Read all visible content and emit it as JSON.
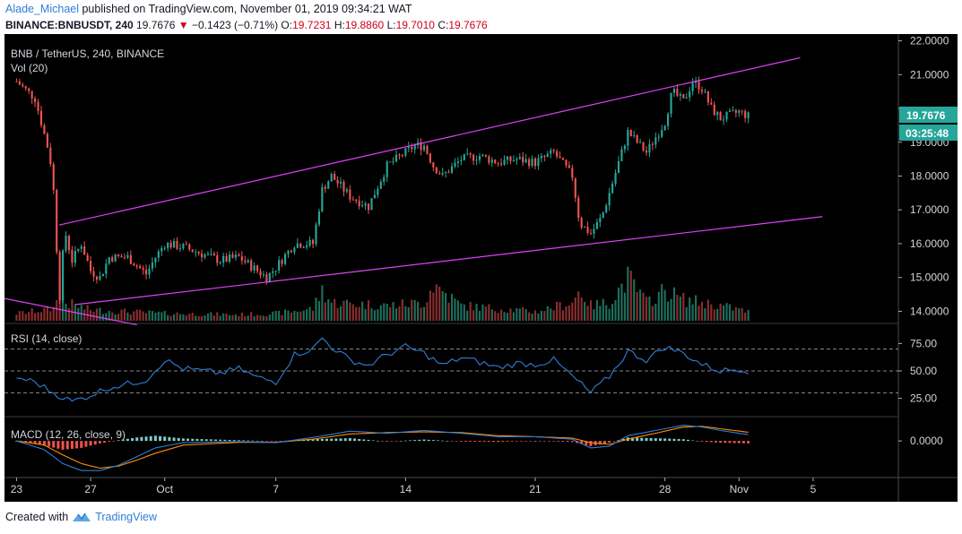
{
  "header": {
    "author": "Alade_Michael",
    "published_text": "published on TradingView.com, November 01, 2019 09:34:21 WAT",
    "symbol_full": "BINANCE:BNBUSDT, 240",
    "last": "19.7676",
    "change": "−0.1423 (−0.71%)",
    "open_label": "O:",
    "open": "19.7231",
    "high_label": "H:",
    "high": "19.8860",
    "low_label": "L:",
    "low": "19.7010",
    "close_label": "C:",
    "close": "19.7676"
  },
  "main_pane": {
    "title": "BNB / TetherUS, 240, BINANCE",
    "vol_label": "Vol (20)",
    "price_badge": "19.7676",
    "countdown_badge": "03:25:48"
  },
  "rsi_pane": {
    "title": "RSI (14, close)"
  },
  "macd_pane": {
    "title": "MACD (12, 26, close, 9)"
  },
  "footer": {
    "created_with": "Created with",
    "brand": "TradingView"
  },
  "colors": {
    "bull": "#26a69a",
    "bear": "#ef5350",
    "bull_vol": "#1e6f5c",
    "bear_vol": "#8b2e2e",
    "channel": "#e040fb",
    "rsi": "#2e7fd6",
    "macd": "#2e7fd6",
    "signal": "#ff8c00"
  },
  "chart_data": {
    "type": "candlestick",
    "price_axis": [
      "22.0000",
      "21.0000",
      "20.0000",
      "19.0000",
      "18.0000",
      "17.0000",
      "16.0000",
      "15.0000",
      "14.0000"
    ],
    "price_range": [
      13.72,
      22.2
    ],
    "rsi_axis": [
      "75.00",
      "50.00",
      "25.00"
    ],
    "rsi_levels": [
      70,
      50,
      30
    ],
    "macd_axis": [
      "0.0000"
    ],
    "date_axis": [
      {
        "label": "23",
        "day": 0
      },
      {
        "label": "27",
        "day": 4
      },
      {
        "label": "Oct",
        "day": 8
      },
      {
        "label": "7",
        "day": 14
      },
      {
        "label": "14",
        "day": 21
      },
      {
        "label": "21",
        "day": 28
      },
      {
        "label": "28",
        "day": 35
      },
      {
        "label": "Nov",
        "day": 39
      },
      {
        "label": "5",
        "day": 43
      }
    ],
    "day_span": [
      -0.65,
      47.6
    ],
    "price_keypoints": [
      [
        0,
        20.8
      ],
      [
        1,
        20.3
      ],
      [
        1.8,
        18.6
      ],
      [
        2.05,
        17.3
      ],
      [
        2.3,
        14.2
      ],
      [
        2.6,
        16.4
      ],
      [
        3,
        15.5
      ],
      [
        3.5,
        16.0
      ],
      [
        4,
        15.2
      ],
      [
        4.5,
        15.0
      ],
      [
        5,
        15.6
      ],
      [
        6,
        15.6
      ],
      [
        7,
        15.1
      ],
      [
        7.5,
        15.6
      ],
      [
        8,
        16.0
      ],
      [
        9,
        15.9
      ],
      [
        10,
        15.7
      ],
      [
        11,
        15.5
      ],
      [
        12,
        15.6
      ],
      [
        13,
        15.2
      ],
      [
        13.5,
        15.0
      ],
      [
        14,
        15.3
      ],
      [
        15,
        16.0
      ],
      [
        16,
        16.0
      ],
      [
        16.5,
        17.6
      ],
      [
        17,
        18.0
      ],
      [
        18,
        17.4
      ],
      [
        19,
        17.1
      ],
      [
        20,
        18.3
      ],
      [
        21,
        18.7
      ],
      [
        21.5,
        18.9
      ],
      [
        22,
        18.9
      ],
      [
        22.5,
        18.3
      ],
      [
        23,
        18.0
      ],
      [
        24,
        18.5
      ],
      [
        25,
        18.6
      ],
      [
        26,
        18.4
      ],
      [
        27,
        18.5
      ],
      [
        28,
        18.4
      ],
      [
        29,
        18.7
      ],
      [
        30,
        18.0
      ],
      [
        30.4,
        16.6
      ],
      [
        31,
        16.3
      ],
      [
        31.6,
        16.8
      ],
      [
        32,
        17.5
      ],
      [
        32.5,
        18.4
      ],
      [
        33,
        19.3
      ],
      [
        34,
        18.7
      ],
      [
        35,
        19.6
      ],
      [
        35.4,
        20.5
      ],
      [
        36,
        20.2
      ],
      [
        36.5,
        20.8
      ],
      [
        37,
        20.6
      ],
      [
        37.5,
        20.0
      ],
      [
        38,
        19.7
      ],
      [
        39,
        19.9
      ],
      [
        39.5,
        19.77
      ]
    ],
    "volume_keypoints": [
      [
        0,
        0.12
      ],
      [
        2,
        0.2
      ],
      [
        2.3,
        0.7
      ],
      [
        2.6,
        0.3
      ],
      [
        4,
        0.18
      ],
      [
        8,
        0.12
      ],
      [
        12,
        0.1
      ],
      [
        14,
        0.12
      ],
      [
        16,
        0.2
      ],
      [
        16.5,
        0.5
      ],
      [
        17,
        0.3
      ],
      [
        20,
        0.25
      ],
      [
        22,
        0.3
      ],
      [
        22.5,
        0.6
      ],
      [
        24,
        0.25
      ],
      [
        28,
        0.15
      ],
      [
        30,
        0.3
      ],
      [
        30.4,
        0.5
      ],
      [
        31,
        0.25
      ],
      [
        32,
        0.3
      ],
      [
        33,
        0.7
      ],
      [
        34,
        0.3
      ],
      [
        35,
        0.5
      ],
      [
        36,
        0.35
      ],
      [
        38,
        0.25
      ],
      [
        39.5,
        0.15
      ]
    ],
    "trendlines": [
      {
        "name": "upper",
        "p1": [
          2.3,
          16.55
        ],
        "p2": [
          42.3,
          21.5
        ]
      },
      {
        "name": "lower",
        "p1": [
          3.2,
          14.2
        ],
        "p2": [
          43.5,
          16.8
        ]
      },
      {
        "name": "old-down",
        "p1": [
          -0.65,
          14.38
        ],
        "p2": [
          6.5,
          13.6
        ]
      }
    ],
    "rsi_range": [
      10,
      90
    ],
    "rsi_keypoints": [
      [
        0,
        44
      ],
      [
        1,
        40
      ],
      [
        2,
        30
      ],
      [
        3,
        22
      ],
      [
        4,
        28
      ],
      [
        5,
        35
      ],
      [
        6,
        38
      ],
      [
        7,
        42
      ],
      [
        8,
        60
      ],
      [
        9,
        52
      ],
      [
        10,
        50
      ],
      [
        11,
        48
      ],
      [
        12,
        52
      ],
      [
        13,
        44
      ],
      [
        14,
        40
      ],
      [
        15,
        65
      ],
      [
        16,
        70
      ],
      [
        16.5,
        80
      ],
      [
        17,
        72
      ],
      [
        18,
        60
      ],
      [
        19,
        55
      ],
      [
        20,
        65
      ],
      [
        21,
        72
      ],
      [
        22,
        66
      ],
      [
        23,
        55
      ],
      [
        24,
        62
      ],
      [
        25,
        58
      ],
      [
        26,
        53
      ],
      [
        27,
        57
      ],
      [
        28,
        56
      ],
      [
        29,
        60
      ],
      [
        30,
        45
      ],
      [
        31,
        30
      ],
      [
        32,
        45
      ],
      [
        33,
        68
      ],
      [
        34,
        60
      ],
      [
        35,
        72
      ],
      [
        36,
        66
      ],
      [
        37,
        56
      ],
      [
        38,
        50
      ],
      [
        39,
        52
      ],
      [
        39.5,
        50
      ]
    ],
    "macd_range": [
      -1.05,
      0.62
    ],
    "macd_keypoints": [
      [
        0,
        0
      ],
      [
        1.5,
        -0.25
      ],
      [
        2.5,
        -0.65
      ],
      [
        3.5,
        -0.85
      ],
      [
        4.5,
        -0.85
      ],
      [
        5.5,
        -0.7
      ],
      [
        6.5,
        -0.45
      ],
      [
        7.5,
        -0.2
      ],
      [
        9,
        -0.05
      ],
      [
        12,
        -0.02
      ],
      [
        14,
        -0.05
      ],
      [
        16,
        0.1
      ],
      [
        18,
        0.28
      ],
      [
        20,
        0.22
      ],
      [
        22,
        0.3
      ],
      [
        24,
        0.22
      ],
      [
        26,
        0.12
      ],
      [
        28,
        0.12
      ],
      [
        30,
        0.05
      ],
      [
        31,
        -0.2
      ],
      [
        32,
        -0.15
      ],
      [
        33,
        0.15
      ],
      [
        35,
        0.35
      ],
      [
        36,
        0.45
      ],
      [
        37,
        0.4
      ],
      [
        38,
        0.3
      ],
      [
        39.5,
        0.18
      ]
    ],
    "signal_keypoints": [
      [
        0,
        0
      ],
      [
        1.5,
        -0.12
      ],
      [
        2.5,
        -0.4
      ],
      [
        3.5,
        -0.65
      ],
      [
        4.5,
        -0.78
      ],
      [
        5.5,
        -0.72
      ],
      [
        6.5,
        -0.55
      ],
      [
        7.5,
        -0.35
      ],
      [
        9,
        -0.12
      ],
      [
        12,
        -0.04
      ],
      [
        14,
        -0.04
      ],
      [
        16,
        0.05
      ],
      [
        18,
        0.2
      ],
      [
        20,
        0.24
      ],
      [
        22,
        0.26
      ],
      [
        24,
        0.24
      ],
      [
        26,
        0.15
      ],
      [
        28,
        0.12
      ],
      [
        30,
        0.08
      ],
      [
        31,
        -0.05
      ],
      [
        32,
        -0.1
      ],
      [
        33,
        0.05
      ],
      [
        35,
        0.28
      ],
      [
        36,
        0.4
      ],
      [
        37,
        0.42
      ],
      [
        38,
        0.35
      ],
      [
        39.5,
        0.25
      ]
    ]
  }
}
